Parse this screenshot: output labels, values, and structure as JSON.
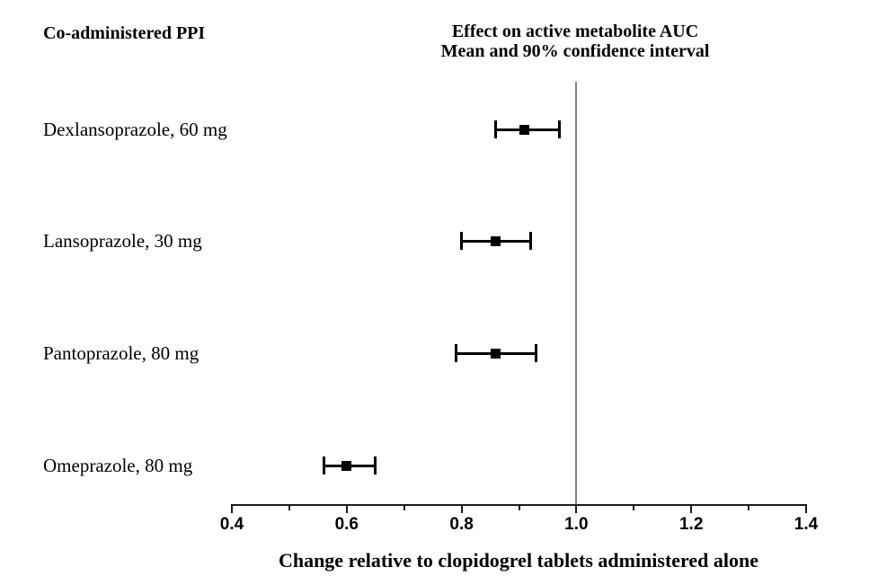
{
  "header": {
    "left_title": "Co-administered PPI",
    "right_title_line1": "Effect on active metabolite AUC",
    "right_title_line2": "Mean and 90% confidence interval"
  },
  "chart_data": {
    "type": "scatter",
    "subtype": "forest-plot",
    "title": "Effect on active metabolite AUC",
    "subtitle": "Mean and 90% confidence interval",
    "categories": [
      "Dexlansoprazole, 60 mg",
      "Lansoprazole, 30 mg",
      "Pantoprazole, 80 mg",
      "Omeprazole, 80 mg"
    ],
    "means": [
      0.91,
      0.86,
      0.86,
      0.6
    ],
    "ci_low": [
      0.86,
      0.8,
      0.79,
      0.56
    ],
    "ci_high": [
      0.97,
      0.92,
      0.93,
      0.65
    ],
    "ci_level": "90%",
    "reference_line": 1.0,
    "xlabel": "Change relative to clopidogrel tablets administered alone",
    "ylabel": "",
    "xlim": [
      0.4,
      1.4
    ],
    "x_major_ticks": [
      0.4,
      0.6,
      0.8,
      1.0,
      1.2,
      1.4
    ],
    "x_major_tick_labels": [
      "0.4",
      "0.6",
      "0.8",
      "1.0",
      "1.2",
      "1.4"
    ],
    "x_minor_ticks": [
      0.5,
      0.7,
      0.9,
      1.1,
      1.3
    ],
    "grid": false,
    "legend": false,
    "marker": "square"
  },
  "colors": {
    "marker": "#000000",
    "error_bar": "#000000",
    "reference_line": "#808080",
    "axis": "#1a1a1a",
    "text": "#000000",
    "background": "#ffffff"
  }
}
